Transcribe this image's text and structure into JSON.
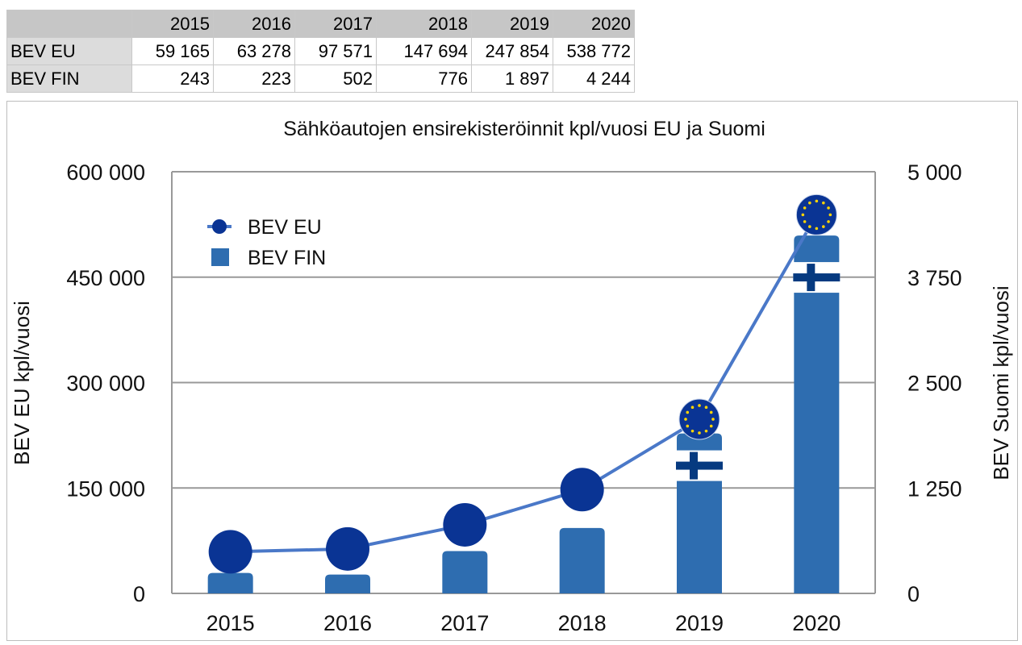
{
  "table": {
    "headers": [
      "",
      "2015",
      "2016",
      "2017",
      "2018",
      "2019",
      "2020"
    ],
    "rows": [
      {
        "label": "BEV EU",
        "values": [
          "59 165",
          "63 278",
          "97 571",
          "147 694",
          "247 854",
          "538 772"
        ]
      },
      {
        "label": "BEV FIN",
        "values": [
          "243",
          "223",
          "502",
          "776",
          "1 897",
          "4 244"
        ]
      }
    ]
  },
  "chart_data": {
    "type": "bar+line",
    "title": "Sähköautojen ensirekisteröinnit kpl/vuosi EU ja Suomi",
    "categories": [
      "2015",
      "2016",
      "2017",
      "2018",
      "2019",
      "2020"
    ],
    "series": [
      {
        "name": "BEV EU",
        "type": "line",
        "axis": "left",
        "values": [
          59165,
          63278,
          97571,
          147694,
          247854,
          538772
        ],
        "color": "#0a3494",
        "line_color": "#4a78c8"
      },
      {
        "name": "BEV FIN",
        "type": "bar",
        "axis": "right",
        "values": [
          243,
          223,
          502,
          776,
          1897,
          4244
        ],
        "color": "#2e6db0"
      }
    ],
    "ylabel": "BEV EU kpl/vuosi",
    "y2label": "BEV Suomi kpl/vuosi",
    "ylim": [
      0,
      600000
    ],
    "y2lim": [
      0,
      5000
    ],
    "yticks": [
      "0",
      "150 000",
      "300 000",
      "450 000",
      "600 000"
    ],
    "y2ticks": [
      "0",
      "1 250",
      "2 500",
      "3 750",
      "5 000"
    ],
    "grid": true,
    "legend": "top-left",
    "marker_images": {
      "BEV EU 2019-2020": "eu-flag-icon",
      "BEV FIN 2019-2020": "finland-flag-icon"
    }
  }
}
